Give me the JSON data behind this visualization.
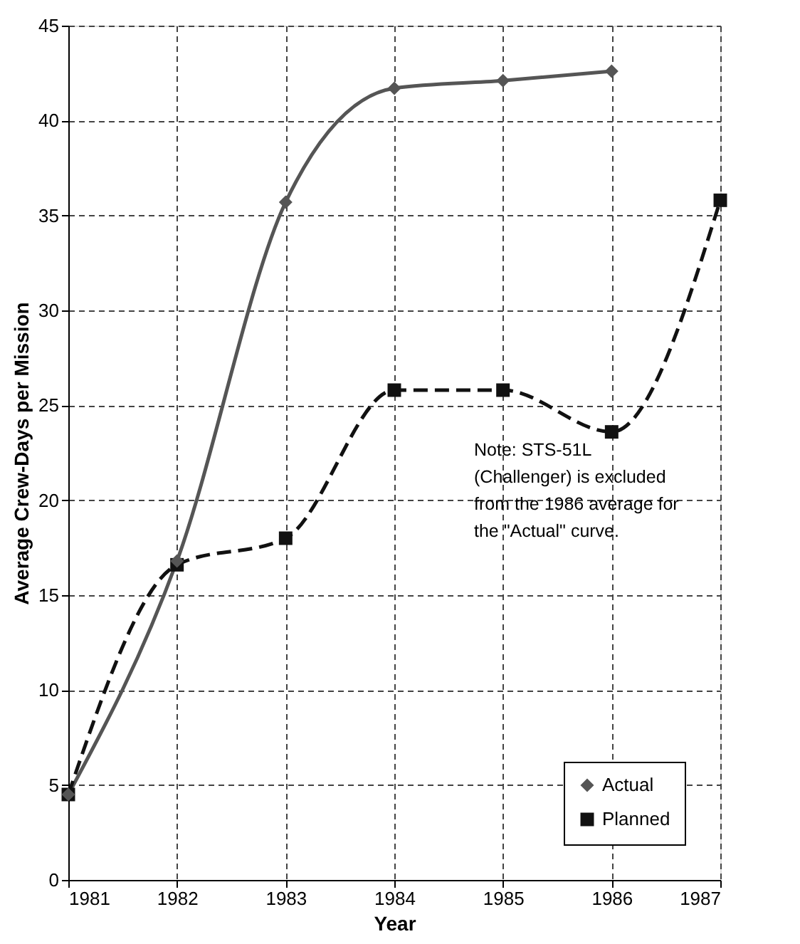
{
  "chart_data": {
    "type": "line",
    "xlabel": "Year",
    "ylabel": "Average Crew-Days per Mission",
    "x": [
      1981,
      1982,
      1983,
      1984,
      1985,
      1986,
      1987
    ],
    "series": [
      {
        "name": "Actual",
        "color": "#555555",
        "marker": "diamond",
        "line_style": "solid",
        "values": [
          4.5,
          16.8,
          35.7,
          41.7,
          42.1,
          42.6,
          null
        ]
      },
      {
        "name": "Planned",
        "color": "#111111",
        "marker": "square",
        "line_style": "dashed",
        "values": [
          4.5,
          16.6,
          18.0,
          25.8,
          25.8,
          23.6,
          35.8
        ]
      }
    ],
    "xlim": [
      1981,
      1987
    ],
    "xticks": [
      1981,
      1982,
      1983,
      1984,
      1985,
      1986,
      1987
    ],
    "ylim": [
      0,
      45
    ],
    "yticks": [
      0,
      5,
      10,
      15,
      20,
      25,
      30,
      35,
      40,
      45
    ],
    "grid": true,
    "legend": "bottom right",
    "annotations": [
      "Note:  STS-51L\n(Challenger) is excluded\nfrom the 1986 average for\nthe \"Actual\" curve."
    ]
  }
}
